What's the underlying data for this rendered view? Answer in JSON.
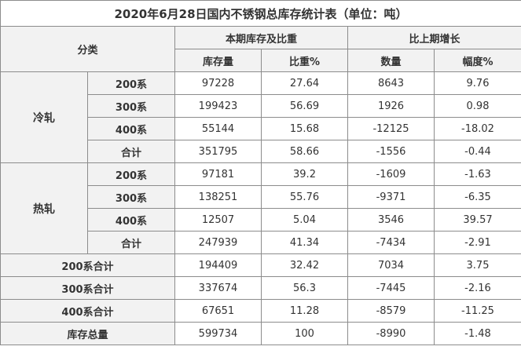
{
  "table": {
    "title": "2020年6月28日国内不锈钢总库存统计表（单位：吨）",
    "header": {
      "category": "分类",
      "current_group": "本期库存及比重",
      "change_group": "比上期增长",
      "stock": "库存量",
      "ratio": "比重%",
      "amount": "数量",
      "rate": "幅度%"
    },
    "cold": {
      "label": "冷轧",
      "rows": [
        {
          "name": "200系",
          "stock": "97228",
          "ratio": "27.64",
          "amount": "8643",
          "rate": "9.76"
        },
        {
          "name": "300系",
          "stock": "199423",
          "ratio": "56.69",
          "amount": "1926",
          "rate": "0.98"
        },
        {
          "name": "400系",
          "stock": "55144",
          "ratio": "15.68",
          "amount": "-12125",
          "rate": "-18.02"
        },
        {
          "name": "合计",
          "stock": "351795",
          "ratio": "58.66",
          "amount": "-1556",
          "rate": "-0.44"
        }
      ]
    },
    "hot": {
      "label": "热轧",
      "rows": [
        {
          "name": "200系",
          "stock": "97181",
          "ratio": "39.2",
          "amount": "-1609",
          "rate": "-1.63"
        },
        {
          "name": "300系",
          "stock": "138251",
          "ratio": "55.76",
          "amount": "-9371",
          "rate": "-6.35"
        },
        {
          "name": "400系",
          "stock": "12507",
          "ratio": "5.04",
          "amount": "3546",
          "rate": "39.57"
        },
        {
          "name": "合计",
          "stock": "247939",
          "ratio": "41.34",
          "amount": "-7434",
          "rate": "-2.91"
        }
      ]
    },
    "totals": [
      {
        "name": "200系合计",
        "stock": "194409",
        "ratio": "32.42",
        "amount": "7034",
        "rate": "3.75"
      },
      {
        "name": "300系合计",
        "stock": "337674",
        "ratio": "56.3",
        "amount": "-7445",
        "rate": "-2.16"
      },
      {
        "name": "400系合计",
        "stock": "67651",
        "ratio": "11.28",
        "amount": "-8579",
        "rate": "-11.25"
      },
      {
        "name": "库存总量",
        "stock": "599734",
        "ratio": "100",
        "amount": "-8990",
        "rate": "-1.48"
      }
    ]
  }
}
